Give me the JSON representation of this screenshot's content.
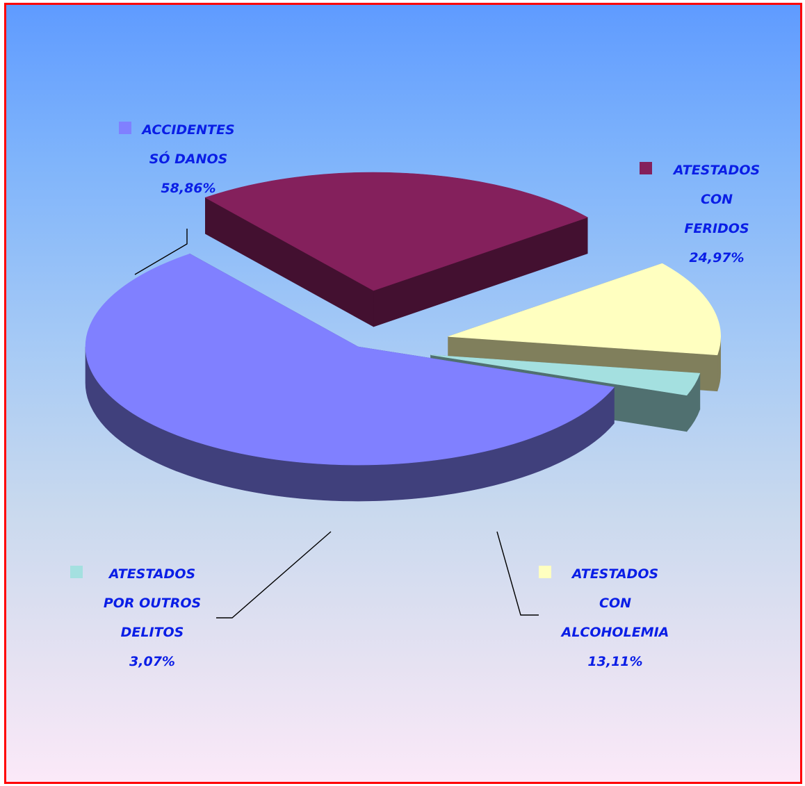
{
  "chart_data": {
    "type": "pie",
    "style": "3d-exploded",
    "title": "",
    "slices": [
      {
        "label_lines": [
          "ACCIDENTES",
          "SÓ DANOS"
        ],
        "value_label": "58,86%",
        "value": 58.86,
        "color": "#8080ff",
        "side_color": "#40407c"
      },
      {
        "label_lines": [
          "ATESTADOS",
          "CON",
          "FERIDOS"
        ],
        "value_label": "24,97%",
        "value": 24.97,
        "color": "#84205c",
        "side_color": "#431030"
      },
      {
        "label_lines": [
          "ATESTADOS",
          "CON",
          "ALCOHOLEMIA"
        ],
        "value_label": "13,11%",
        "value": 13.11,
        "color": "#ffffc0",
        "side_color": "#807f5c"
      },
      {
        "label_lines": [
          "ATESTADOS",
          "POR OUTROS",
          "DELITOS"
        ],
        "value_label": "3,07%",
        "value": 3.07,
        "color": "#a4e0e0",
        "side_color": "#507070"
      }
    ],
    "legend": "labels-beside-slices"
  }
}
